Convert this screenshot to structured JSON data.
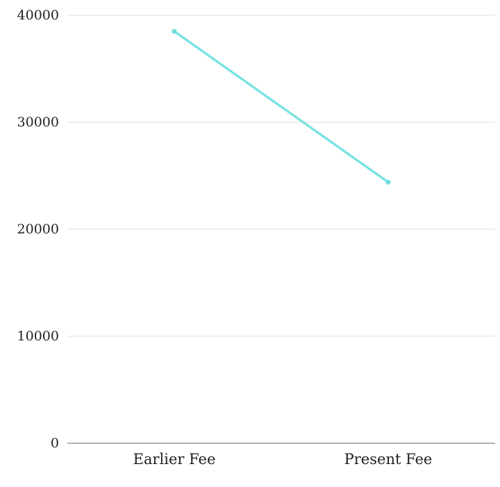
{
  "chart_data": {
    "type": "line",
    "categories": [
      "Earlier Fee",
      "Present Fee"
    ],
    "values": [
      38500,
      24400
    ],
    "title": "",
    "xlabel": "",
    "ylabel": "",
    "ylim": [
      0,
      40000
    ],
    "yticks": [
      0,
      10000,
      20000,
      30000,
      40000
    ],
    "ytick_labels": [
      "0",
      "10000",
      "20000",
      "30000",
      "40000"
    ],
    "grid": true,
    "legend_position": "none",
    "colors": {
      "line": "#7de2e2",
      "marker": "#6edddd",
      "gridline": "#dedede",
      "axis_line": "#999999",
      "text": "#1f1f1f",
      "background": "#ffffff"
    }
  }
}
